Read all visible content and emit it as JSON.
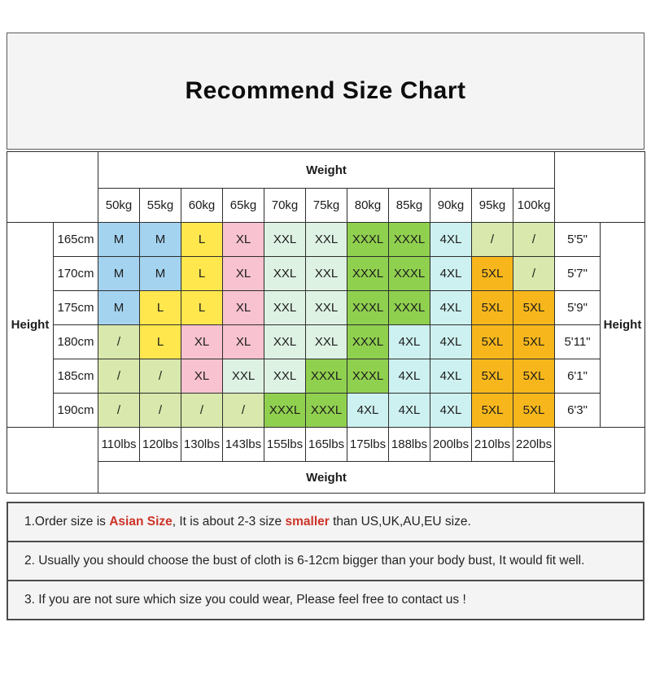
{
  "title": "Recommend Size Chart",
  "labels": {
    "weight": "Weight",
    "height": "Height"
  },
  "chart_data": {
    "type": "table",
    "title": "Recommend Size Chart",
    "weight_kg": [
      "50kg",
      "55kg",
      "60kg",
      "65kg",
      "70kg",
      "75kg",
      "80kg",
      "85kg",
      "90kg",
      "95kg",
      "100kg"
    ],
    "weight_lbs": [
      "110lbs",
      "120lbs",
      "130lbs",
      "143lbs",
      "155lbs",
      "165lbs",
      "175lbs",
      "188lbs",
      "200lbs",
      "210lbs",
      "220lbs"
    ],
    "rows": [
      {
        "height_cm": "165cm",
        "height_ft": "5'5\"",
        "sizes": [
          "M",
          "M",
          "L",
          "XL",
          "XXL",
          "XXL",
          "XXXL",
          "XXXL",
          "4XL",
          "/",
          "/"
        ]
      },
      {
        "height_cm": "170cm",
        "height_ft": "5'7\"",
        "sizes": [
          "M",
          "M",
          "L",
          "XL",
          "XXL",
          "XXL",
          "XXXL",
          "XXXL",
          "4XL",
          "5XL",
          "/"
        ]
      },
      {
        "height_cm": "175cm",
        "height_ft": "5'9\"",
        "sizes": [
          "M",
          "L",
          "L",
          "XL",
          "XXL",
          "XXL",
          "XXXL",
          "XXXL",
          "4XL",
          "5XL",
          "5XL"
        ]
      },
      {
        "height_cm": "180cm",
        "height_ft": "5'11\"",
        "sizes": [
          "/",
          "L",
          "XL",
          "XL",
          "XXL",
          "XXL",
          "XXXL",
          "4XL",
          "4XL",
          "5XL",
          "5XL"
        ]
      },
      {
        "height_cm": "185cm",
        "height_ft": "6'1\"",
        "sizes": [
          "/",
          "/",
          "XL",
          "XXL",
          "XXL",
          "XXXL",
          "XXXL",
          "4XL",
          "4XL",
          "5XL",
          "5XL"
        ]
      },
      {
        "height_cm": "190cm",
        "height_ft": "6'3\"",
        "sizes": [
          "/",
          "/",
          "/",
          "/",
          "XXXL",
          "XXXL",
          "4XL",
          "4XL",
          "4XL",
          "5XL",
          "5XL"
        ]
      }
    ],
    "size_colors": {
      "M": "#a4d3f0",
      "L": "#ffe74d",
      "XL": "#f8c2d0",
      "XXL": "#def2e4",
      "XXXL": "#90d04f",
      "4XL": "#cdf1f0",
      "5XL": "#f7b71c",
      "/": "#d9e8ac"
    }
  },
  "notes": [
    {
      "segments": [
        {
          "text": "1.Order size is ",
          "red": false
        },
        {
          "text": "Asian Size",
          "red": true
        },
        {
          "text": ", It is about 2-3 size ",
          "red": false
        },
        {
          "text": "smaller",
          "red": true
        },
        {
          "text": " than US,UK,AU,EU size.",
          "red": false
        }
      ]
    },
    {
      "segments": [
        {
          "text": "2. Usually you should choose the bust of cloth is 6-12cm bigger than your body bust, It would fit well.",
          "red": false
        }
      ]
    },
    {
      "segments": [
        {
          "text": "3. If you are not sure which size you could wear, Please feel free to contact us !",
          "red": false
        }
      ]
    }
  ]
}
